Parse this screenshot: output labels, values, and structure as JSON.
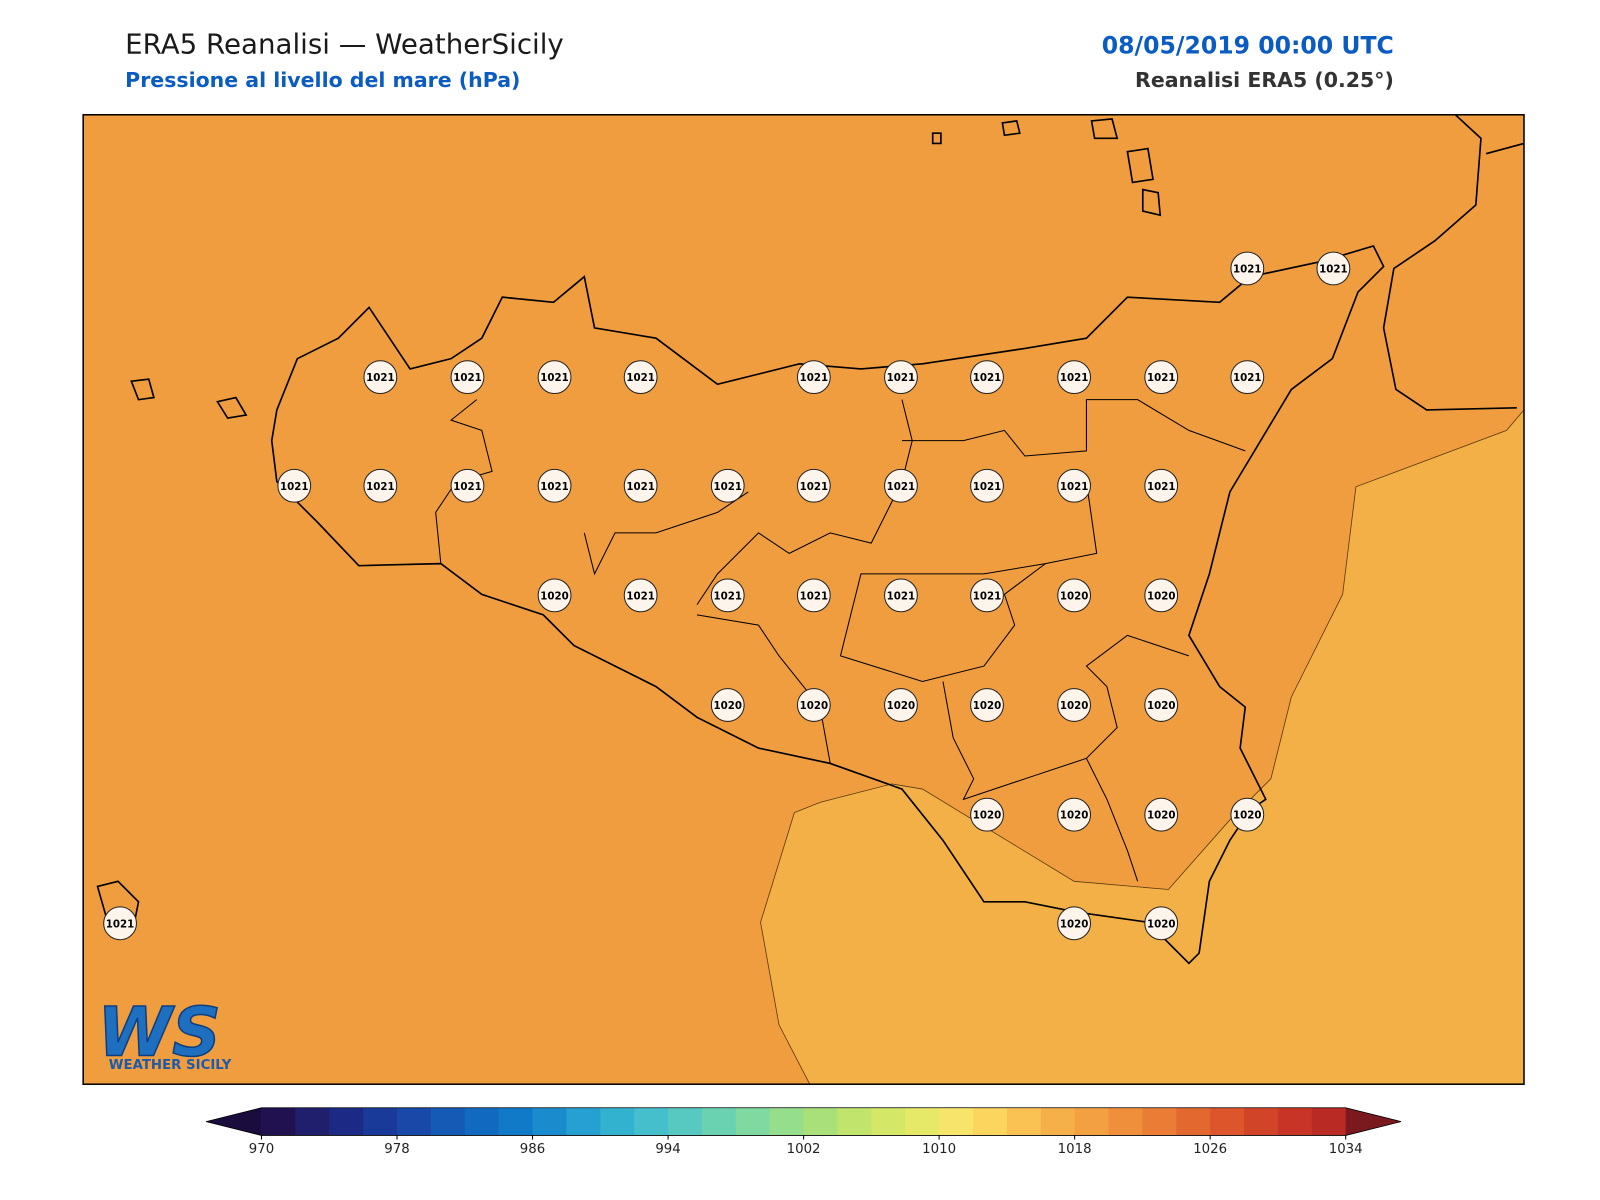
{
  "header": {
    "title": "ERA5 Reanalisi — WeatherSicily",
    "subtitle": "Pressione al livello del mare (hPa)",
    "datetime": "08/05/2019 00:00 UTC",
    "source": "Reanalisi ERA5 (0.25°)"
  },
  "map": {
    "stations": [
      1021,
      1021,
      1021,
      1021,
      1021,
      1021,
      1021,
      1021,
      1021,
      1021,
      1021,
      1021,
      1021,
      1021,
      1021,
      1021,
      1021,
      1021,
      1021,
      1021,
      1021,
      1021,
      1021,
      1020,
      1021,
      1021,
      1021,
      1021,
      1021,
      1020,
      1020,
      1020,
      1020,
      1020,
      1020,
      1020,
      1020,
      1020,
      1020,
      1020,
      1020,
      1020,
      1020,
      1021
    ]
  },
  "colorbar": {
    "range": [
      970,
      1034
    ],
    "ticks": [
      970,
      978,
      986,
      994,
      1002,
      1010,
      1018,
      1026,
      1034
    ]
  },
  "logo": {
    "mark": "WS",
    "text": "WEATHER SICILY"
  }
}
